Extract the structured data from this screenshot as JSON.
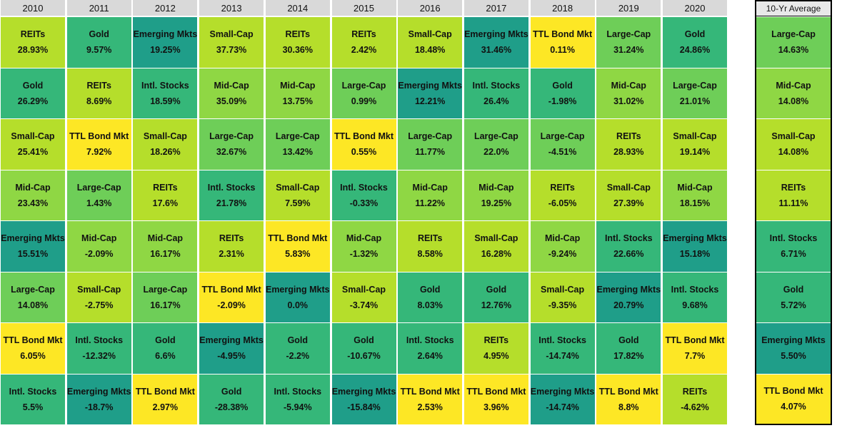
{
  "colors": {
    "yellow": "#fde725",
    "lime": "#b5de2b",
    "light_green": "#8fd744",
    "green": "#6ece58",
    "teal_green": "#35b779",
    "teal": "#1f9e89",
    "header_bg": "#d9d9d9"
  },
  "chart_data": {
    "type": "table",
    "title": "",
    "years": [
      "2010",
      "2011",
      "2012",
      "2013",
      "2014",
      "2015",
      "2016",
      "2017",
      "2018",
      "2019",
      "2020"
    ],
    "columns": [
      {
        "header": "2010",
        "cells": [
          {
            "asset": "REITs",
            "ret": "28.93%",
            "color": "lime"
          },
          {
            "asset": "Gold",
            "ret": "26.29%",
            "color": "teal_green"
          },
          {
            "asset": "Small-Cap",
            "ret": "25.41%",
            "color": "lime"
          },
          {
            "asset": "Mid-Cap",
            "ret": "23.43%",
            "color": "light_green"
          },
          {
            "asset": "Emerging Mkts",
            "ret": "15.51%",
            "color": "teal"
          },
          {
            "asset": "Large-Cap",
            "ret": "14.08%",
            "color": "green"
          },
          {
            "asset": "TTL Bond Mkt",
            "ret": "6.05%",
            "color": "yellow"
          },
          {
            "asset": "Intl. Stocks",
            "ret": "5.5%",
            "color": "teal_green"
          }
        ]
      },
      {
        "header": "2011",
        "cells": [
          {
            "asset": "Gold",
            "ret": "9.57%",
            "color": "teal_green"
          },
          {
            "asset": "REITs",
            "ret": "8.69%",
            "color": "lime"
          },
          {
            "asset": "TTL Bond Mkt",
            "ret": "7.92%",
            "color": "yellow"
          },
          {
            "asset": "Large-Cap",
            "ret": "1.43%",
            "color": "green"
          },
          {
            "asset": "Mid-Cap",
            "ret": "-2.09%",
            "color": "light_green"
          },
          {
            "asset": "Small-Cap",
            "ret": "-2.75%",
            "color": "lime"
          },
          {
            "asset": "Intl. Stocks",
            "ret": "-12.32%",
            "color": "teal_green"
          },
          {
            "asset": "Emerging Mkts",
            "ret": "-18.7%",
            "color": "teal"
          }
        ]
      },
      {
        "header": "2012",
        "cells": [
          {
            "asset": "Emerging Mkts",
            "ret": "19.25%",
            "color": "teal"
          },
          {
            "asset": "Intl. Stocks",
            "ret": "18.59%",
            "color": "teal_green"
          },
          {
            "asset": "Small-Cap",
            "ret": "18.26%",
            "color": "lime"
          },
          {
            "asset": "REITs",
            "ret": "17.6%",
            "color": "lime"
          },
          {
            "asset": "Mid-Cap",
            "ret": "16.17%",
            "color": "light_green"
          },
          {
            "asset": "Large-Cap",
            "ret": "16.17%",
            "color": "green"
          },
          {
            "asset": "Gold",
            "ret": "6.6%",
            "color": "teal_green"
          },
          {
            "asset": "TTL Bond Mkt",
            "ret": "2.97%",
            "color": "yellow"
          }
        ]
      },
      {
        "header": "2013",
        "cells": [
          {
            "asset": "Small-Cap",
            "ret": "37.73%",
            "color": "lime"
          },
          {
            "asset": "Mid-Cap",
            "ret": "35.09%",
            "color": "light_green"
          },
          {
            "asset": "Large-Cap",
            "ret": "32.67%",
            "color": "green"
          },
          {
            "asset": "Intl. Stocks",
            "ret": "21.78%",
            "color": "teal_green"
          },
          {
            "asset": "REITs",
            "ret": "2.31%",
            "color": "lime"
          },
          {
            "asset": "TTL Bond Mkt",
            "ret": "-2.09%",
            "color": "yellow"
          },
          {
            "asset": "Emerging Mkts",
            "ret": "-4.95%",
            "color": "teal"
          },
          {
            "asset": "Gold",
            "ret": "-28.38%",
            "color": "teal_green"
          }
        ]
      },
      {
        "header": "2014",
        "cells": [
          {
            "asset": "REITs",
            "ret": "30.36%",
            "color": "lime"
          },
          {
            "asset": "Mid-Cap",
            "ret": "13.75%",
            "color": "light_green"
          },
          {
            "asset": "Large-Cap",
            "ret": "13.42%",
            "color": "green"
          },
          {
            "asset": "Small-Cap",
            "ret": "7.59%",
            "color": "lime"
          },
          {
            "asset": "TTL Bond Mkt",
            "ret": "5.83%",
            "color": "yellow"
          },
          {
            "asset": "Emerging Mkts",
            "ret": "0.0%",
            "color": "teal"
          },
          {
            "asset": "Gold",
            "ret": "-2.2%",
            "color": "teal_green"
          },
          {
            "asset": "Intl. Stocks",
            "ret": "-5.94%",
            "color": "teal_green"
          }
        ]
      },
      {
        "header": "2015",
        "cells": [
          {
            "asset": "REITs",
            "ret": "2.42%",
            "color": "lime"
          },
          {
            "asset": "Large-Cap",
            "ret": "0.99%",
            "color": "green"
          },
          {
            "asset": "TTL Bond Mkt",
            "ret": "0.55%",
            "color": "yellow"
          },
          {
            "asset": "Intl. Stocks",
            "ret": "-0.33%",
            "color": "teal_green"
          },
          {
            "asset": "Mid-Cap",
            "ret": "-1.32%",
            "color": "light_green"
          },
          {
            "asset": "Small-Cap",
            "ret": "-3.74%",
            "color": "lime"
          },
          {
            "asset": "Gold",
            "ret": "-10.67%",
            "color": "teal_green"
          },
          {
            "asset": "Emerging Mkts",
            "ret": "-15.84%",
            "color": "teal"
          }
        ]
      },
      {
        "header": "2016",
        "cells": [
          {
            "asset": "Small-Cap",
            "ret": "18.48%",
            "color": "lime"
          },
          {
            "asset": "Emerging Mkts",
            "ret": "12.21%",
            "color": "teal"
          },
          {
            "asset": "Large-Cap",
            "ret": "11.77%",
            "color": "green"
          },
          {
            "asset": "Mid-Cap",
            "ret": "11.22%",
            "color": "light_green"
          },
          {
            "asset": "REITs",
            "ret": "8.58%",
            "color": "lime"
          },
          {
            "asset": "Gold",
            "ret": "8.03%",
            "color": "teal_green"
          },
          {
            "asset": "Intl. Stocks",
            "ret": "2.64%",
            "color": "teal_green"
          },
          {
            "asset": "TTL Bond Mkt",
            "ret": "2.53%",
            "color": "yellow"
          }
        ]
      },
      {
        "header": "2017",
        "cells": [
          {
            "asset": "Emerging Mkts",
            "ret": "31.46%",
            "color": "teal"
          },
          {
            "asset": "Intl. Stocks",
            "ret": "26.4%",
            "color": "teal_green"
          },
          {
            "asset": "Large-Cap",
            "ret": "22.0%",
            "color": "green"
          },
          {
            "asset": "Mid-Cap",
            "ret": "19.25%",
            "color": "light_green"
          },
          {
            "asset": "Small-Cap",
            "ret": "16.28%",
            "color": "lime"
          },
          {
            "asset": "Gold",
            "ret": "12.76%",
            "color": "teal_green"
          },
          {
            "asset": "REITs",
            "ret": "4.95%",
            "color": "lime"
          },
          {
            "asset": "TTL Bond Mkt",
            "ret": "3.96%",
            "color": "yellow"
          }
        ]
      },
      {
        "header": "2018",
        "cells": [
          {
            "asset": "TTL Bond Mkt",
            "ret": "0.11%",
            "color": "yellow"
          },
          {
            "asset": "Gold",
            "ret": "-1.98%",
            "color": "teal_green"
          },
          {
            "asset": "Large-Cap",
            "ret": "-4.51%",
            "color": "green"
          },
          {
            "asset": "REITs",
            "ret": "-6.05%",
            "color": "lime"
          },
          {
            "asset": "Mid-Cap",
            "ret": "-9.24%",
            "color": "light_green"
          },
          {
            "asset": "Small-Cap",
            "ret": "-9.35%",
            "color": "lime"
          },
          {
            "asset": "Intl. Stocks",
            "ret": "-14.74%",
            "color": "teal_green"
          },
          {
            "asset": "Emerging Mkts",
            "ret": "-14.74%",
            "color": "teal"
          }
        ]
      },
      {
        "header": "2019",
        "cells": [
          {
            "asset": "Large-Cap",
            "ret": "31.24%",
            "color": "green"
          },
          {
            "asset": "Mid-Cap",
            "ret": "31.02%",
            "color": "light_green"
          },
          {
            "asset": "REITs",
            "ret": "28.93%",
            "color": "lime"
          },
          {
            "asset": "Small-Cap",
            "ret": "27.39%",
            "color": "lime"
          },
          {
            "asset": "Intl. Stocks",
            "ret": "22.66%",
            "color": "teal_green"
          },
          {
            "asset": "Emerging Mkts",
            "ret": "20.79%",
            "color": "teal"
          },
          {
            "asset": "Gold",
            "ret": "17.82%",
            "color": "teal_green"
          },
          {
            "asset": "TTL Bond Mkt",
            "ret": "8.8%",
            "color": "yellow"
          }
        ]
      },
      {
        "header": "2020",
        "cells": [
          {
            "asset": "Gold",
            "ret": "24.86%",
            "color": "teal_green"
          },
          {
            "asset": "Large-Cap",
            "ret": "21.01%",
            "color": "green"
          },
          {
            "asset": "Small-Cap",
            "ret": "19.14%",
            "color": "lime"
          },
          {
            "asset": "Mid-Cap",
            "ret": "18.15%",
            "color": "light_green"
          },
          {
            "asset": "Emerging Mkts",
            "ret": "15.18%",
            "color": "teal"
          },
          {
            "asset": "Intl. Stocks",
            "ret": "9.68%",
            "color": "teal_green"
          },
          {
            "asset": "TTL Bond Mkt",
            "ret": "7.7%",
            "color": "yellow"
          },
          {
            "asset": "REITs",
            "ret": "-4.62%",
            "color": "lime"
          }
        ]
      }
    ],
    "average": {
      "header": "10-Yr Average",
      "cells": [
        {
          "asset": "Large-Cap",
          "ret": "14.63%",
          "color": "green"
        },
        {
          "asset": "Mid-Cap",
          "ret": "14.08%",
          "color": "light_green"
        },
        {
          "asset": "Small-Cap",
          "ret": "14.08%",
          "color": "lime"
        },
        {
          "asset": "REITs",
          "ret": "11.11%",
          "color": "lime"
        },
        {
          "asset": "Intl. Stocks",
          "ret": "6.71%",
          "color": "teal_green"
        },
        {
          "asset": "Gold",
          "ret": "5.72%",
          "color": "teal_green"
        },
        {
          "asset": "Emerging Mkts",
          "ret": "5.50%",
          "color": "teal"
        },
        {
          "asset": "TTL Bond Mkt",
          "ret": "4.07%",
          "color": "yellow"
        }
      ]
    }
  }
}
